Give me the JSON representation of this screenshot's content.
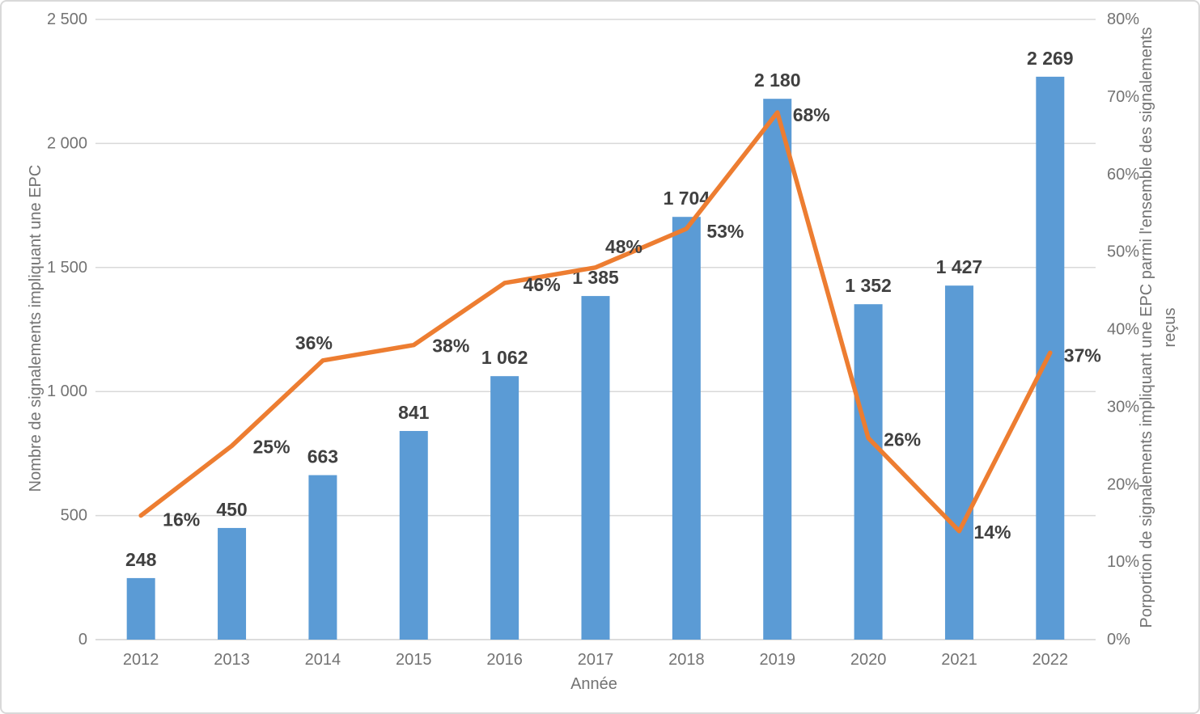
{
  "chart_data": {
    "type": "combo-bar-line",
    "title": "",
    "legend": "none",
    "grid": true,
    "categories": [
      "2012",
      "2013",
      "2014",
      "2015",
      "2016",
      "2017",
      "2018",
      "2019",
      "2020",
      "2021",
      "2022"
    ],
    "series": [
      {
        "name": "Nombre de signalements impliquant une EPC",
        "chart_type": "bar",
        "axis": "left",
        "color": "#5B9BD5",
        "values": [
          248,
          450,
          663,
          841,
          1062,
          1385,
          1704,
          2180,
          1352,
          1427,
          2269
        ],
        "data_labels": [
          "248",
          "450",
          "663",
          "841",
          "1 062",
          "1 385",
          "1 704",
          "2 180",
          "1 352",
          "1 427",
          "2 269"
        ]
      },
      {
        "name": "Porportion de signalements impliquant une EPC parmi l'ensemble des signalements reçus",
        "chart_type": "line",
        "axis": "right",
        "color": "#ED7D31",
        "values": [
          16,
          25,
          36,
          38,
          46,
          48,
          53,
          68,
          26,
          14,
          37
        ],
        "data_labels": [
          "16%",
          "25%",
          "36%",
          "38%",
          "46%",
          "48%",
          "53%",
          "68%",
          "26%",
          "14%",
          "37%"
        ]
      }
    ],
    "x_axis": {
      "title": "Année"
    },
    "left_axis": {
      "title": "Nombre de signalements impliquant une EPC",
      "min": 0,
      "max": 2500,
      "tick_values": [
        0,
        500,
        1000,
        1500,
        2000,
        2500
      ],
      "tick_labels": [
        "0",
        "500",
        "1 000",
        "1 500",
        "2 000",
        "2 500"
      ]
    },
    "right_axis": {
      "title": "Porportion de signalements impliquant une EPC parmi l'ensemble des signalements reçus",
      "min": 0,
      "max": 80,
      "tick_values": [
        0,
        10,
        20,
        30,
        40,
        50,
        60,
        70,
        80
      ],
      "tick_labels": [
        "0%",
        "10%",
        "20%",
        "30%",
        "40%",
        "50%",
        "60%",
        "70%",
        "80%"
      ]
    },
    "styles": {
      "grid_color": "#D9D9D9",
      "baseline_color": "#D0D0D0",
      "tick_label_color": "#737373",
      "data_label_color": "#404040",
      "border_color": "#D9D9D9",
      "background": "#FFFFFF"
    }
  }
}
